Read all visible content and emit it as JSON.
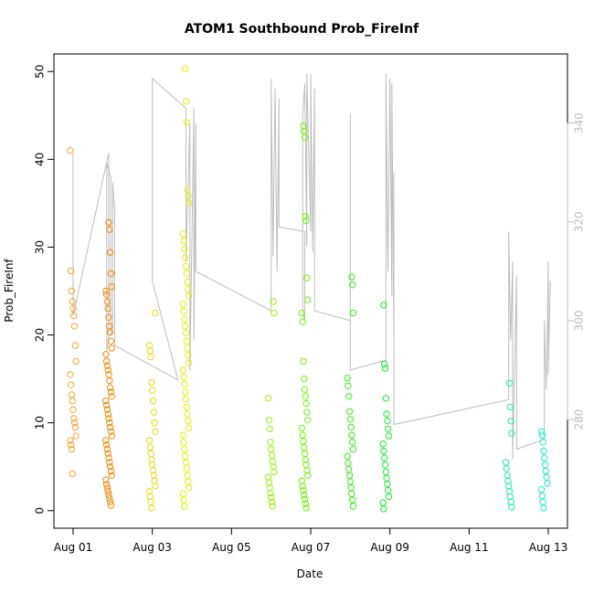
{
  "chart_data": {
    "type": "scatter",
    "title": "ATOM1 Southbound Prob_FireInf",
    "xlabel": "Date",
    "ylabel": "Prob_FireInf",
    "x_ticks": [
      "Aug 01",
      "Aug 03",
      "Aug 05",
      "Aug 07",
      "Aug 09",
      "Aug 11",
      "Aug 13"
    ],
    "x_range_days": [
      0,
      12.5
    ],
    "y_ticks": [
      0,
      10,
      20,
      30,
      40,
      50
    ],
    "y_range": [
      -2,
      52
    ],
    "y2_ticks": [
      280,
      300,
      320,
      340
    ],
    "y2_range": [
      258,
      354
    ],
    "point_groups": [
      {
        "day": 0.0,
        "color": "#F5A833",
        "values": [
          41,
          27.3,
          25,
          23.8,
          23,
          22.2,
          21,
          18.8,
          17,
          15.5,
          14.3,
          13.2,
          12.5,
          11.5,
          10.5,
          10.0,
          9.5,
          8.5,
          8.0,
          7.5,
          7.0,
          4.2
        ]
      },
      {
        "day": 0.9,
        "color": "#F08C0A",
        "values": [
          32.8,
          32.0,
          29.4,
          27,
          25.5,
          25,
          24.6,
          23.8,
          23,
          22,
          21,
          20.3,
          19.3,
          18.5,
          17.8,
          17,
          16.5,
          16,
          15.5,
          14.8,
          14,
          13.5,
          13,
          12.5,
          12,
          11.5,
          11,
          10.5,
          10,
          9.5,
          9,
          8.5,
          8,
          7.5,
          7,
          6.5,
          6,
          5.5,
          5,
          4.5,
          4,
          3.5,
          3,
          2.6,
          2.2,
          1.8,
          1.4,
          1.0,
          0.6
        ]
      },
      {
        "day": 2.0,
        "color": "#E6DC14",
        "values": [
          22.5,
          18.8,
          18.2,
          17.5,
          14.6,
          13.7,
          12.5,
          11.2,
          10,
          9.0,
          8.0,
          7.2,
          6.5,
          5.8,
          5.2,
          4.6,
          4.0,
          3.4,
          2.8,
          2.2,
          1.6,
          1.0,
          0.3
        ]
      },
      {
        "day": 2.85,
        "color": "#E3F00A",
        "values": [
          50.3,
          46.6,
          44.2,
          36.5,
          35.8,
          35,
          31.5,
          30.7,
          29.8,
          28.8,
          27.8,
          27,
          26,
          25.2,
          24.4,
          23.5,
          22.7,
          21.8,
          21,
          20.2,
          19.3,
          18.5,
          17.7,
          16.8,
          16,
          15.2,
          14.4,
          13.5,
          12.7,
          11.8,
          11,
          10.2,
          9.4,
          8.6,
          7.8,
          7.0,
          6.2,
          5.5,
          4.8,
          4.0,
          3.3,
          2.6,
          1.9,
          1.2,
          0.5
        ]
      },
      {
        "day": 5.0,
        "color": "#9CF20F",
        "values": [
          23.8,
          22.5,
          12.8,
          10.3,
          9.3,
          7.8,
          7.0,
          6.3,
          5.6,
          5.0,
          4.4,
          3.8,
          3.2,
          2.6,
          2.0,
          1.5,
          1.0,
          0.5
        ]
      },
      {
        "day": 5.85,
        "color": "#76F20C",
        "values": [
          43.8,
          43.2,
          42.5,
          33.5,
          33.0,
          26.5,
          24.0,
          22.5,
          21.5,
          17.0,
          15.0,
          13.8,
          13.0,
          12.2,
          11.2,
          10.3,
          9.4,
          8.6,
          7.9,
          7.2,
          6.5,
          5.8,
          5.2,
          4.6,
          4.0,
          3.4,
          2.8,
          2.3,
          1.8,
          1.3,
          0.8,
          0.3
        ]
      },
      {
        "day": 7.0,
        "color": "#3CEB1E",
        "values": [
          26.6,
          25.7,
          22.5,
          15.1,
          14.2,
          13.0,
          11.3,
          10.4,
          9.5,
          8.6,
          7.8,
          7.0,
          6.2,
          5.4,
          4.7,
          4.0,
          3.3,
          2.6,
          1.9,
          1.2,
          0.5
        ]
      },
      {
        "day": 7.9,
        "color": "#1CEB38",
        "values": [
          23.4,
          16.7,
          16.2,
          12.8,
          11.0,
          10.2,
          9.3,
          8.5,
          7.6,
          6.8,
          6.0,
          5.2,
          4.4,
          3.7,
          3.0,
          2.3,
          1.6,
          0.9,
          0.2
        ]
      },
      {
        "day": 11.0,
        "color": "#24EBA8",
        "values": [
          14.5,
          11.8,
          10.2,
          8.8,
          5.5,
          4.8,
          4.0,
          3.4,
          2.8,
          2.2,
          1.6,
          1.0,
          0.4
        ]
      },
      {
        "day": 11.9,
        "color": "#22E8C8",
        "values": [
          9.0,
          8.6,
          7.8,
          6.8,
          6.0,
          5.2,
          4.5,
          3.8,
          3.1,
          2.4,
          1.7,
          1.0,
          0.3
        ]
      }
    ],
    "gray_line": {
      "color": "#bdbdbd",
      "points": [
        [
          0.0,
          334
        ],
        [
          0.0,
          301
        ],
        [
          0.9,
          334
        ],
        [
          0.9,
          296
        ],
        [
          0.85,
          294
        ],
        [
          0.85,
          332
        ],
        [
          0.95,
          329
        ],
        [
          0.95,
          297
        ],
        [
          1.0,
          298
        ],
        [
          1.0,
          328
        ],
        [
          1.05,
          322
        ],
        [
          1.05,
          295
        ],
        [
          2.65,
          288
        ],
        [
          2.0,
          308
        ],
        [
          2.0,
          349
        ],
        [
          2.85,
          343
        ],
        [
          2.85,
          312
        ],
        [
          2.95,
          340
        ],
        [
          2.95,
          290
        ],
        [
          3.05,
          343
        ],
        [
          3.05,
          296
        ],
        [
          3.1,
          340
        ],
        [
          3.1,
          310
        ],
        [
          5.0,
          302
        ],
        [
          5.0,
          349
        ],
        [
          5.05,
          313
        ],
        [
          5.1,
          347
        ],
        [
          5.15,
          310
        ],
        [
          5.2,
          345
        ],
        [
          5.2,
          319
        ],
        [
          5.85,
          318
        ],
        [
          5.85,
          300
        ],
        [
          5.8,
          302
        ],
        [
          5.8,
          342
        ],
        [
          5.85,
          348
        ],
        [
          5.9,
          315
        ],
        [
          5.9,
          350
        ],
        [
          6.0,
          318
        ],
        [
          6.0,
          350
        ],
        [
          6.05,
          314
        ],
        [
          6.1,
          347
        ],
        [
          6.1,
          302
        ],
        [
          7.0,
          300
        ],
        [
          7.0,
          342
        ],
        [
          7.0,
          290
        ],
        [
          7.9,
          292
        ],
        [
          7.9,
          350
        ],
        [
          7.95,
          310
        ],
        [
          8.0,
          349
        ],
        [
          8.05,
          305
        ],
        [
          8.05,
          348
        ],
        [
          8.1,
          296
        ],
        [
          8.1,
          330
        ],
        [
          8.1,
          279
        ],
        [
          11.0,
          284
        ],
        [
          11.0,
          306
        ],
        [
          11.0,
          318
        ],
        [
          11.05,
          296
        ],
        [
          11.1,
          312
        ],
        [
          11.1,
          272
        ],
        [
          11.15,
          291
        ],
        [
          11.2,
          309
        ],
        [
          11.2,
          274
        ],
        [
          11.9,
          276
        ],
        [
          11.9,
          300
        ],
        [
          11.95,
          286
        ],
        [
          12.0,
          312
        ],
        [
          12.0,
          289
        ],
        [
          12.05,
          308
        ]
      ]
    }
  }
}
